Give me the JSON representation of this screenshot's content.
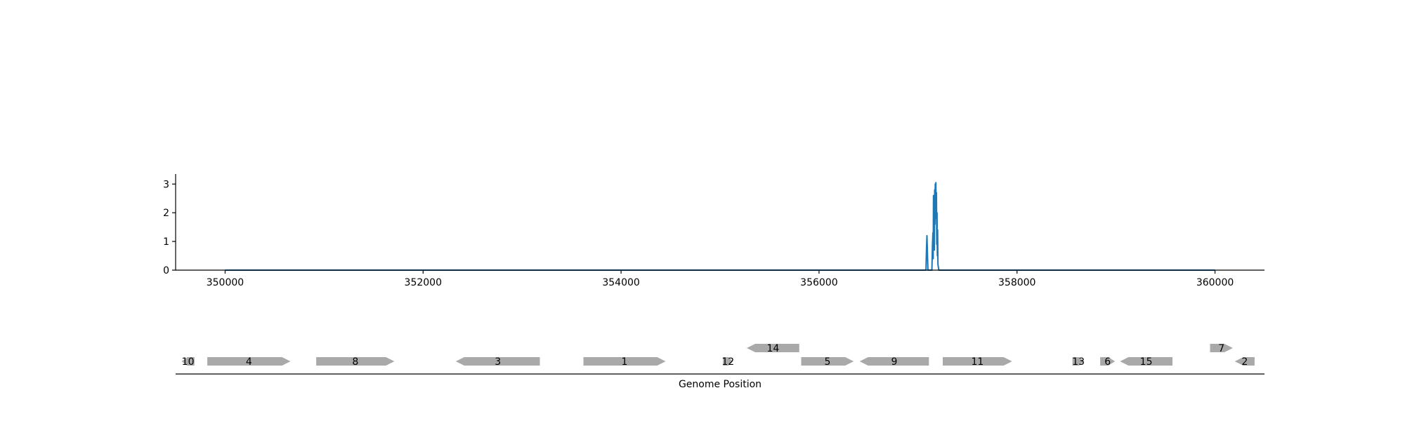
{
  "colors": {
    "signal": "#1f77b4",
    "gene_fill": "#a9a9a9",
    "axis": "#000000",
    "background": "#ffffff"
  },
  "chart_data": [
    {
      "type": "line",
      "title": "",
      "xlabel": "",
      "ylabel": "",
      "xlim": [
        349500,
        360500
      ],
      "ylim": [
        0,
        3.35
      ],
      "grid": false,
      "legend": "none",
      "x_ticks": [
        350000,
        352000,
        354000,
        356000,
        358000,
        360000
      ],
      "x_tick_labels": [
        "350000",
        "352000",
        "354000",
        "356000",
        "358000",
        "360000"
      ],
      "y_ticks": [
        0,
        1,
        2,
        3
      ],
      "y_tick_labels": [
        "0",
        "1",
        "2",
        "3"
      ],
      "series": [
        {
          "x": [
            350000,
            357080,
            357085,
            357090,
            357095,
            357100,
            357140,
            357145,
            357150,
            357153,
            357156,
            357159,
            357162,
            357165,
            357168,
            357171,
            357174,
            357177,
            357180,
            357183,
            357186,
            357189,
            357192,
            357195,
            357198,
            357201,
            357210,
            360000
          ],
          "y": [
            0,
            0,
            0.7,
            1.2,
            0.6,
            0,
            0,
            0.8,
            1.3,
            0.4,
            2.6,
            1.1,
            2.2,
            0.7,
            2.8,
            1.6,
            3.0,
            2.4,
            3.05,
            1.8,
            2.7,
            0.9,
            2.0,
            0.5,
            1.4,
            0.2,
            0,
            0
          ]
        }
      ]
    },
    {
      "type": "gene-track",
      "title": "",
      "xlabel": "Genome Position",
      "xlim": [
        349500,
        360500
      ],
      "legend": "none",
      "genes": [
        {
          "label": "10",
          "start": 349560,
          "end": 349690,
          "strand": -1,
          "row": 0
        },
        {
          "label": "4",
          "start": 349820,
          "end": 350660,
          "strand": 1,
          "row": 0
        },
        {
          "label": "8",
          "start": 350920,
          "end": 351710,
          "strand": 1,
          "row": 0
        },
        {
          "label": "3",
          "start": 352330,
          "end": 353180,
          "strand": -1,
          "row": 0
        },
        {
          "label": "1",
          "start": 353620,
          "end": 354450,
          "strand": 1,
          "row": 0
        },
        {
          "label": "12",
          "start": 355030,
          "end": 355130,
          "strand": 1,
          "row": 0
        },
        {
          "label": "14",
          "start": 355270,
          "end": 355800,
          "strand": -1,
          "row": 1
        },
        {
          "label": "5",
          "start": 355820,
          "end": 356350,
          "strand": 1,
          "row": 0
        },
        {
          "label": "9",
          "start": 356410,
          "end": 357110,
          "strand": -1,
          "row": 0
        },
        {
          "label": "11",
          "start": 357250,
          "end": 357950,
          "strand": 1,
          "row": 0
        },
        {
          "label": "13",
          "start": 358560,
          "end": 358680,
          "strand": 1,
          "row": 0
        },
        {
          "label": "6",
          "start": 358840,
          "end": 358990,
          "strand": 1,
          "row": 0
        },
        {
          "label": "15",
          "start": 359040,
          "end": 359570,
          "strand": -1,
          "row": 0
        },
        {
          "label": "7",
          "start": 359950,
          "end": 360180,
          "strand": 1,
          "row": 1
        },
        {
          "label": "2",
          "start": 360200,
          "end": 360400,
          "strand": -1,
          "row": 0
        }
      ]
    }
  ]
}
